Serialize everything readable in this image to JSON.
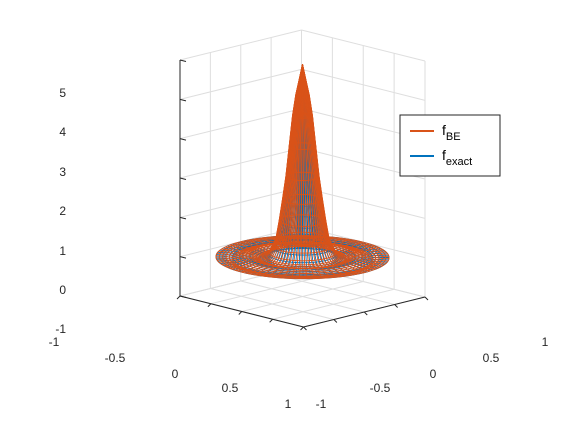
{
  "chart_data": {
    "type": "surface-mesh-3d",
    "title": "",
    "xlabel": "",
    "ylabel": "",
    "zlabel": "",
    "xlim": [
      -1,
      1
    ],
    "ylim": [
      -1,
      1
    ],
    "zlim": [
      -1,
      5
    ],
    "x_ticks": [
      "-1",
      "-0.5",
      "0",
      "0.5",
      "1"
    ],
    "y_ticks": [
      "-1",
      "-0.5",
      "0",
      "0.5",
      "1"
    ],
    "z_ticks": [
      "-1",
      "0",
      "1",
      "2",
      "3",
      "4",
      "5"
    ],
    "grid": true,
    "legend_position": "top-right",
    "domain": "disk of radius 1 centred at the origin",
    "peak": {
      "x": 0,
      "y": 0,
      "z": 4.9
    },
    "series": [
      {
        "name": "f_BE",
        "label_main": "f",
        "label_sub": "BE",
        "color": "#D95319",
        "radial_profile": {
          "r": [
            0,
            0.1,
            0.2,
            0.3,
            0.4,
            0.5,
            0.6,
            0.7,
            0.8,
            0.9,
            1.0
          ],
          "z": [
            4.9,
            3.9,
            1.9,
            0.5,
            0.05,
            0.0,
            0.05,
            0.0,
            -0.05,
            0.0,
            0.0
          ]
        }
      },
      {
        "name": "f_exact",
        "label_main": "f",
        "label_sub": "exact",
        "color": "#0072BD",
        "radial_profile": {
          "r": [
            0,
            0.1,
            0.2,
            0.3,
            0.4,
            0.5,
            0.6,
            0.7,
            0.8,
            0.9,
            1.0
          ],
          "z": [
            4.85,
            3.85,
            1.85,
            0.45,
            0.0,
            -0.05,
            0.0,
            0.05,
            0.0,
            0.0,
            0.0
          ]
        }
      }
    ]
  }
}
